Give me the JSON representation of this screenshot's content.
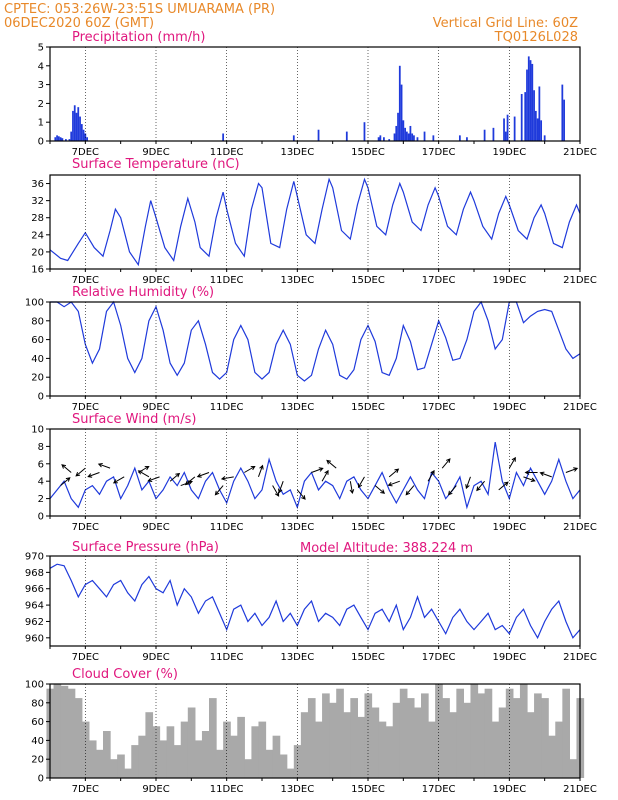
{
  "header": {
    "station": "CPTEC:   053:26W-23:51S   UMUARAMA (PR)",
    "run": "06DEC2020 60Z (GMT)",
    "grid_note": "Vertical Grid Line: 60Z",
    "code": "TQ0126L028"
  },
  "model_altitude": "Model Altitude: 388.224 m",
  "x_axis": {
    "start_day": 6.0,
    "end_day": 21.0,
    "ticks": [
      7,
      9,
      11,
      13,
      15,
      17,
      19,
      21
    ],
    "tick_labels": [
      "7DEC",
      "9DEC",
      "11DEC",
      "13DEC",
      "15DEC",
      "17DEC",
      "19DEC",
      "21DEC"
    ]
  },
  "colors": {
    "line": "#1f3adb",
    "bar": "#1f3adb",
    "cloud": "#a9a9a9",
    "title": "#e0177e",
    "header": "#e8892a"
  },
  "chart_data": [
    {
      "id": "precip",
      "type": "bar",
      "title": "Precipitation (mm/h)",
      "ylim": [
        0,
        5
      ],
      "yticks": [
        0,
        1,
        2,
        3,
        4,
        5
      ],
      "x": [
        6.15,
        6.2,
        6.25,
        6.3,
        6.35,
        6.45,
        6.55,
        6.6,
        6.65,
        6.7,
        6.75,
        6.8,
        6.85,
        6.9,
        6.95,
        7.0,
        7.05,
        10.9,
        12.9,
        13.6,
        14.4,
        14.9,
        15.3,
        15.35,
        15.45,
        15.6,
        15.75,
        15.8,
        15.85,
        15.9,
        15.95,
        16.0,
        16.05,
        16.1,
        16.15,
        16.2,
        16.25,
        16.3,
        16.4,
        16.6,
        16.85,
        17.6,
        17.8,
        18.3,
        18.55,
        18.85,
        18.9,
        18.95,
        19.15,
        19.35,
        19.45,
        19.5,
        19.55,
        19.6,
        19.65,
        19.7,
        19.75,
        19.8,
        19.85,
        19.9,
        20.0,
        20.5,
        20.55
      ],
      "values": [
        0.2,
        0.3,
        0.25,
        0.2,
        0.15,
        0.1,
        0.1,
        0.5,
        1.6,
        1.9,
        1.5,
        1.8,
        1.3,
        0.9,
        0.6,
        0.4,
        0.2,
        0.4,
        0.3,
        0.6,
        0.5,
        1.0,
        0.2,
        0.3,
        0.2,
        0.1,
        0.4,
        0.8,
        1.5,
        4.0,
        3.0,
        1.1,
        0.7,
        0.5,
        0.4,
        0.8,
        0.4,
        0.3,
        0.2,
        0.5,
        0.3,
        0.3,
        0.2,
        0.6,
        0.7,
        1.2,
        0.5,
        1.4,
        1.3,
        2.5,
        2.6,
        3.8,
        4.5,
        4.3,
        4.1,
        2.7,
        1.6,
        1.2,
        2.9,
        1.1,
        0.3,
        3.0,
        2.2
      ]
    },
    {
      "id": "temp",
      "type": "line",
      "title": "Surface Temperature (nC)",
      "ylim": [
        16,
        38
      ],
      "yticks": [
        16,
        20,
        24,
        28,
        32,
        36
      ],
      "x": [
        6.0,
        6.3,
        6.5,
        6.8,
        7.0,
        7.25,
        7.5,
        7.7,
        7.85,
        8.0,
        8.25,
        8.5,
        8.7,
        8.85,
        9.0,
        9.25,
        9.5,
        9.7,
        9.9,
        10.1,
        10.25,
        10.5,
        10.7,
        10.9,
        11.0,
        11.25,
        11.5,
        11.7,
        11.9,
        12.0,
        12.25,
        12.5,
        12.7,
        12.9,
        13.0,
        13.25,
        13.5,
        13.7,
        13.9,
        14.0,
        14.25,
        14.5,
        14.7,
        14.9,
        15.0,
        15.25,
        15.5,
        15.7,
        15.9,
        16.0,
        16.25,
        16.5,
        16.7,
        16.9,
        17.0,
        17.25,
        17.5,
        17.7,
        17.9,
        18.0,
        18.25,
        18.5,
        18.7,
        18.9,
        19.0,
        19.25,
        19.5,
        19.7,
        19.9,
        20.0,
        20.25,
        20.5,
        20.7,
        20.9,
        21.0
      ],
      "values": [
        20.5,
        18.5,
        18,
        22,
        24.5,
        21,
        19,
        25,
        30,
        28,
        20,
        17,
        26,
        32,
        28,
        21,
        18,
        26,
        32.5,
        27,
        21,
        19,
        28,
        34,
        30,
        22,
        19,
        30,
        36,
        35,
        22,
        21,
        30,
        36.5,
        33,
        24,
        22,
        30,
        37,
        35,
        25,
        23,
        31,
        37,
        35,
        26,
        24,
        31,
        36,
        34,
        27,
        25,
        31,
        35,
        33,
        26,
        24,
        30,
        34,
        32,
        26,
        23,
        29,
        33,
        31,
        25,
        23,
        28,
        31,
        29,
        22,
        21,
        27,
        31,
        29
      ]
    },
    {
      "id": "rh",
      "type": "line",
      "title": "Relative Humidity (%)",
      "ylim": [
        0,
        100
      ],
      "yticks": [
        0,
        20,
        40,
        60,
        80,
        100
      ],
      "x": [
        6.0,
        6.2,
        6.4,
        6.6,
        6.8,
        7.0,
        7.2,
        7.4,
        7.6,
        7.8,
        8.0,
        8.2,
        8.4,
        8.6,
        8.8,
        9.0,
        9.2,
        9.4,
        9.6,
        9.8,
        10.0,
        10.2,
        10.4,
        10.6,
        10.8,
        11.0,
        11.2,
        11.4,
        11.6,
        11.8,
        12.0,
        12.2,
        12.4,
        12.6,
        12.8,
        13.0,
        13.2,
        13.4,
        13.6,
        13.8,
        14.0,
        14.2,
        14.4,
        14.6,
        14.8,
        15.0,
        15.2,
        15.4,
        15.6,
        15.8,
        16.0,
        16.2,
        16.4,
        16.6,
        16.8,
        17.0,
        17.2,
        17.4,
        17.6,
        17.8,
        18.0,
        18.2,
        18.4,
        18.6,
        18.8,
        19.0,
        19.2,
        19.4,
        19.6,
        19.8,
        20.0,
        20.2,
        20.4,
        20.6,
        20.8,
        21.0
      ],
      "values": [
        100,
        100,
        95,
        100,
        90,
        55,
        35,
        50,
        90,
        100,
        75,
        40,
        25,
        40,
        80,
        95,
        70,
        35,
        22,
        35,
        70,
        80,
        55,
        25,
        18,
        25,
        60,
        75,
        60,
        25,
        18,
        25,
        55,
        70,
        55,
        22,
        16,
        22,
        50,
        70,
        55,
        22,
        18,
        28,
        60,
        75,
        58,
        25,
        22,
        40,
        75,
        58,
        28,
        30,
        55,
        80,
        62,
        38,
        40,
        60,
        90,
        100,
        80,
        50,
        60,
        100,
        100,
        78,
        85,
        90,
        92,
        90,
        70,
        50,
        40,
        45
      ]
    },
    {
      "id": "wind",
      "type": "line",
      "title": "Surface Wind (m/s)",
      "ylim": [
        0,
        10
      ],
      "yticks": [
        0,
        2,
        4,
        6,
        8,
        10
      ],
      "x": [
        6.0,
        6.2,
        6.4,
        6.6,
        6.8,
        7.0,
        7.2,
        7.4,
        7.6,
        7.8,
        8.0,
        8.2,
        8.4,
        8.6,
        8.8,
        9.0,
        9.2,
        9.4,
        9.6,
        9.8,
        10.0,
        10.2,
        10.4,
        10.6,
        10.8,
        11.0,
        11.2,
        11.4,
        11.6,
        11.8,
        12.0,
        12.2,
        12.4,
        12.6,
        12.8,
        13.0,
        13.2,
        13.4,
        13.6,
        13.8,
        14.0,
        14.2,
        14.4,
        14.6,
        14.8,
        15.0,
        15.2,
        15.4,
        15.6,
        15.8,
        16.0,
        16.2,
        16.4,
        16.6,
        16.8,
        17.0,
        17.2,
        17.4,
        17.6,
        17.8,
        18.0,
        18.2,
        18.4,
        18.6,
        18.8,
        19.0,
        19.2,
        19.4,
        19.6,
        19.8,
        20.0,
        20.2,
        20.4,
        20.6,
        20.8,
        21.0
      ],
      "values": [
        2,
        3,
        4,
        2,
        1,
        3,
        3.5,
        2.5,
        4,
        4.5,
        2,
        3.5,
        5.5,
        3,
        4,
        2,
        3,
        4.5,
        3.5,
        5,
        3,
        2,
        4,
        5,
        3,
        1.5,
        4,
        5.5,
        4,
        2,
        3,
        6.5,
        4,
        2.5,
        3,
        1,
        4,
        5,
        3,
        4,
        3.5,
        2,
        4,
        4.5,
        3,
        2,
        3.5,
        5,
        3,
        1.5,
        3,
        4.5,
        3,
        2,
        5,
        4,
        2,
        3,
        4.5,
        1,
        3.5,
        4,
        2.5,
        8.5,
        4,
        2,
        5,
        3.5,
        5.5,
        4,
        2.5,
        4,
        6.5,
        4,
        2,
        3
      ]
    },
    {
      "id": "pres",
      "type": "line",
      "title": "Surface Pressure (hPa)",
      "ylim": [
        959,
        970
      ],
      "yticks": [
        960,
        962,
        964,
        966,
        968,
        970
      ],
      "x": [
        6.0,
        6.2,
        6.4,
        6.6,
        6.8,
        7.0,
        7.2,
        7.4,
        7.6,
        7.8,
        8.0,
        8.2,
        8.4,
        8.6,
        8.8,
        9.0,
        9.2,
        9.4,
        9.6,
        9.8,
        10.0,
        10.2,
        10.4,
        10.6,
        10.8,
        11.0,
        11.2,
        11.4,
        11.6,
        11.8,
        12.0,
        12.2,
        12.4,
        12.6,
        12.8,
        13.0,
        13.2,
        13.4,
        13.6,
        13.8,
        14.0,
        14.2,
        14.4,
        14.6,
        14.8,
        15.0,
        15.2,
        15.4,
        15.6,
        15.8,
        16.0,
        16.2,
        16.4,
        16.6,
        16.8,
        17.0,
        17.2,
        17.4,
        17.6,
        17.8,
        18.0,
        18.2,
        18.4,
        18.6,
        18.8,
        19.0,
        19.2,
        19.4,
        19.6,
        19.8,
        20.0,
        20.2,
        20.4,
        20.6,
        20.8,
        21.0
      ],
      "values": [
        968.5,
        969,
        968.8,
        967,
        965,
        966.5,
        967,
        966,
        965,
        966.5,
        967,
        965.5,
        964.5,
        966.5,
        967.5,
        966,
        965.5,
        967,
        964,
        966,
        965,
        963,
        964.5,
        965,
        963,
        961,
        963.5,
        964,
        962,
        963,
        961.5,
        962.5,
        964.5,
        962,
        963,
        961.5,
        963.5,
        964.5,
        962,
        963,
        962.5,
        961.5,
        963.5,
        964,
        962.5,
        961,
        963,
        963.5,
        962,
        964,
        961,
        962.5,
        965,
        962.5,
        963.5,
        962,
        960.5,
        962.5,
        963.5,
        962,
        961,
        962,
        963,
        961,
        961.5,
        960.5,
        962.5,
        963.5,
        961.5,
        960,
        962,
        963.5,
        964.5,
        962,
        960,
        961
      ]
    },
    {
      "id": "cloud",
      "type": "area",
      "title": "Cloud Cover (%)",
      "ylim": [
        0,
        100
      ],
      "yticks": [
        0,
        20,
        40,
        60,
        80,
        100
      ],
      "x": [
        6.0,
        6.2,
        6.4,
        6.6,
        6.8,
        7.0,
        7.2,
        7.4,
        7.6,
        7.8,
        8.0,
        8.2,
        8.4,
        8.6,
        8.8,
        9.0,
        9.2,
        9.4,
        9.6,
        9.8,
        10.0,
        10.2,
        10.4,
        10.6,
        10.8,
        11.0,
        11.2,
        11.4,
        11.6,
        11.8,
        12.0,
        12.2,
        12.4,
        12.6,
        12.8,
        13.0,
        13.2,
        13.4,
        13.6,
        13.8,
        14.0,
        14.2,
        14.4,
        14.6,
        14.8,
        15.0,
        15.2,
        15.4,
        15.6,
        15.8,
        16.0,
        16.2,
        16.4,
        16.6,
        16.8,
        17.0,
        17.2,
        17.4,
        17.6,
        17.8,
        18.0,
        18.2,
        18.4,
        18.6,
        18.8,
        19.0,
        19.2,
        19.4,
        19.6,
        19.8,
        20.0,
        20.2,
        20.4,
        20.6,
        20.8,
        21.0
      ],
      "values": [
        95,
        100,
        98,
        95,
        85,
        60,
        40,
        30,
        50,
        20,
        25,
        10,
        35,
        45,
        70,
        55,
        40,
        55,
        35,
        60,
        75,
        40,
        50,
        85,
        30,
        60,
        45,
        65,
        20,
        55,
        60,
        30,
        45,
        25,
        10,
        35,
        70,
        85,
        60,
        90,
        80,
        95,
        70,
        85,
        65,
        90,
        75,
        60,
        55,
        80,
        95,
        85,
        75,
        90,
        60,
        100,
        85,
        70,
        95,
        80,
        100,
        90,
        95,
        60,
        75,
        95,
        85,
        100,
        70,
        90,
        85,
        45,
        60,
        95,
        20,
        85
      ]
    }
  ],
  "wind_arrows": {
    "x": [
      6.3,
      6.6,
      7.0,
      7.4,
      7.7,
      8.1,
      8.5,
      8.8,
      9.1,
      9.4,
      9.7,
      10.1,
      10.5,
      10.9,
      11.2,
      11.5,
      11.9,
      12.3,
      12.6,
      13.0,
      13.4,
      13.7,
      14.1,
      14.5,
      14.9,
      15.2,
      15.6,
      15.9,
      16.3,
      16.7,
      17.1,
      17.5,
      17.9,
      18.3,
      18.7,
      19.0,
      19.4,
      19.8,
      20.2,
      20.6
    ],
    "speed": [
      3.5,
      5,
      5.5,
      5,
      5.5,
      4.5,
      5,
      4.5,
      4.5,
      4,
      3.5,
      4.5,
      5,
      3.5,
      4.5,
      5,
      4.5,
      3.5,
      4,
      3,
      5,
      4,
      5.5,
      4,
      4.5,
      3.5,
      4.5,
      4,
      3.5,
      4,
      5.5,
      3.5,
      4.5,
      4,
      3,
      5.5,
      4.5,
      5,
      4.5,
      5
    ],
    "dir_deg": [
      40,
      140,
      220,
      200,
      160,
      210,
      30,
      150,
      200,
      40,
      20,
      220,
      200,
      230,
      190,
      30,
      70,
      300,
      250,
      310,
      20,
      60,
      140,
      280,
      240,
      320,
      40,
      200,
      230,
      60,
      50,
      230,
      250,
      230,
      40,
      60,
      340,
      180,
      160,
      20
    ]
  }
}
